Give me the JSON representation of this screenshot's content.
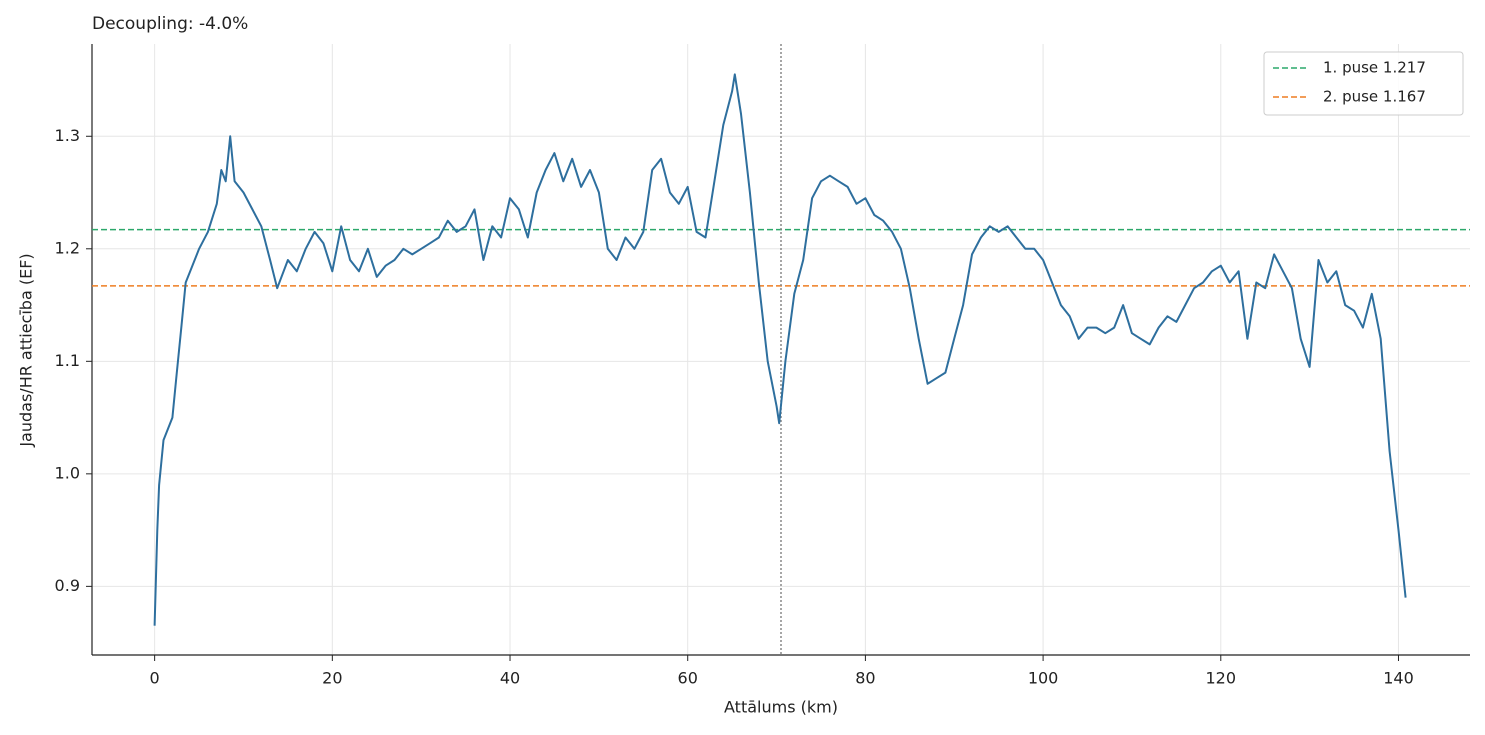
{
  "chart_data": {
    "type": "line",
    "title": "Decoupling: -4.0%",
    "xlabel": "Attālums (km)",
    "ylabel": "Jaudas/HR attiecība (EF)",
    "x": [
      0,
      0.3,
      0.5,
      1,
      2,
      2.5,
      3,
      3.5,
      4,
      5,
      6,
      7,
      7.5,
      8,
      8.5,
      9,
      10,
      11,
      12,
      13,
      13.8,
      15,
      16,
      17,
      18,
      19,
      20,
      21,
      22,
      23,
      24,
      25,
      26,
      27,
      28,
      29,
      30,
      31,
      32,
      33,
      34,
      35,
      36,
      37,
      38,
      39,
      40,
      41,
      42,
      43,
      44,
      45,
      46,
      47,
      48,
      49,
      50,
      51,
      52,
      53,
      54,
      55,
      56,
      57,
      58,
      59,
      60,
      61,
      62,
      63,
      64,
      65,
      65.3,
      66,
      67,
      68,
      69,
      70,
      70.3,
      71,
      72,
      73,
      74,
      75,
      76,
      77,
      78,
      79,
      80,
      81,
      82,
      83,
      84,
      85,
      86,
      87,
      88,
      89,
      90,
      91,
      92,
      93,
      94,
      95,
      96,
      97,
      98,
      99,
      100,
      101,
      102,
      103,
      104,
      105,
      106,
      107,
      108,
      109,
      110,
      111,
      112,
      113,
      114,
      115,
      116,
      117,
      118,
      119,
      120,
      121,
      122,
      123,
      124,
      125,
      126,
      127,
      128,
      129,
      130,
      131,
      132,
      133,
      134,
      135,
      136,
      137,
      138,
      139,
      140,
      140.8
    ],
    "series": [
      {
        "name": "EF",
        "color": "#2e6f9e",
        "values": [
          0.865,
          0.95,
          0.99,
          1.03,
          1.05,
          1.09,
          1.13,
          1.17,
          1.18,
          1.2,
          1.215,
          1.24,
          1.27,
          1.26,
          1.3,
          1.26,
          1.25,
          1.235,
          1.22,
          1.19,
          1.165,
          1.19,
          1.18,
          1.2,
          1.215,
          1.205,
          1.18,
          1.22,
          1.19,
          1.18,
          1.2,
          1.175,
          1.185,
          1.19,
          1.2,
          1.195,
          1.2,
          1.205,
          1.21,
          1.225,
          1.215,
          1.22,
          1.235,
          1.19,
          1.22,
          1.21,
          1.245,
          1.235,
          1.21,
          1.25,
          1.27,
          1.285,
          1.26,
          1.28,
          1.255,
          1.27,
          1.25,
          1.2,
          1.19,
          1.21,
          1.2,
          1.215,
          1.27,
          1.28,
          1.25,
          1.24,
          1.255,
          1.215,
          1.21,
          1.26,
          1.31,
          1.34,
          1.355,
          1.32,
          1.25,
          1.17,
          1.1,
          1.06,
          1.045,
          1.1,
          1.16,
          1.19,
          1.245,
          1.26,
          1.265,
          1.26,
          1.255,
          1.24,
          1.245,
          1.23,
          1.225,
          1.215,
          1.2,
          1.165,
          1.12,
          1.08,
          1.085,
          1.09,
          1.12,
          1.15,
          1.195,
          1.21,
          1.22,
          1.215,
          1.22,
          1.21,
          1.2,
          1.2,
          1.19,
          1.17,
          1.15,
          1.14,
          1.12,
          1.13,
          1.13,
          1.125,
          1.13,
          1.15,
          1.125,
          1.12,
          1.115,
          1.13,
          1.14,
          1.135,
          1.15,
          1.165,
          1.17,
          1.18,
          1.185,
          1.17,
          1.18,
          1.12,
          1.17,
          1.165,
          1.195,
          1.18,
          1.165,
          1.12,
          1.095,
          1.19,
          1.17,
          1.18,
          1.15,
          1.145,
          1.13,
          1.16,
          1.12,
          1.02,
          0.95,
          0.89
        ]
      }
    ],
    "reference_lines": [
      {
        "name": "1. puse 1.217",
        "value": 1.217,
        "color": "#2ca86b"
      },
      {
        "name": "2. puse 1.167",
        "value": 1.167,
        "color": "#ee7d22"
      }
    ],
    "vline_x": 70.5,
    "xlim": [
      -7.05,
      148.05
    ],
    "ylim": [
      0.839,
      1.382
    ],
    "xticks": [
      0,
      20,
      40,
      60,
      80,
      100,
      120,
      140
    ],
    "yticks": [
      0.9,
      {
        "value": 1,
        "label": "1.0"
      },
      1.1,
      1.2,
      1.3
    ],
    "grid": true,
    "legend": "upper right"
  }
}
